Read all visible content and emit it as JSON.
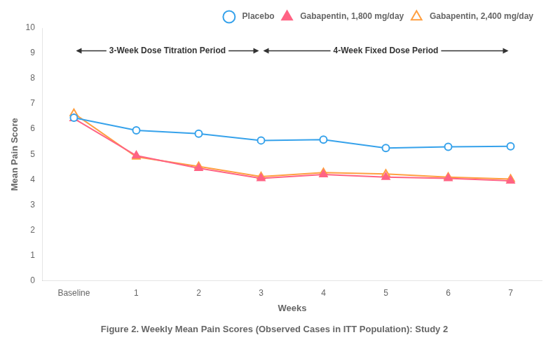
{
  "chart_data": {
    "type": "line",
    "caption": "Figure 2. Weekly Mean Pain Scores (Observed Cases in ITT Population): Study 2",
    "xlabel": "Weeks",
    "ylabel": "Mean Pain Score",
    "categories": [
      "Baseline",
      "1",
      "2",
      "3",
      "4",
      "5",
      "6",
      "7"
    ],
    "series": [
      {
        "name": "  Placebo",
        "marker": "open_circle",
        "values": [
          6.45,
          5.95,
          5.82,
          5.55,
          5.58,
          5.25,
          5.3,
          5.32
        ]
      },
      {
        "name": "  Gabapentin, 1,800 mg/day",
        "marker": "filled_triangle",
        "values": [
          6.42,
          4.95,
          4.45,
          4.05,
          4.2,
          4.1,
          4.05,
          3.95
        ]
      },
      {
        "name": "  Gabapentin, 2,400 mg/day",
        "marker": "open_triangle",
        "values": [
          6.62,
          4.9,
          4.52,
          4.12,
          4.28,
          4.22,
          4.1,
          4.02
        ]
      }
    ],
    "ylim": [
      0,
      10
    ],
    "yticks": [
      0,
      1,
      2,
      3,
      4,
      5,
      6,
      7,
      8,
      9,
      10
    ],
    "grid": false,
    "legend": "upper right",
    "annotations": [
      {
        "text": "3-Week Dose Titration Period",
        "from": "Baseline",
        "to": "3",
        "y": 9.1
      },
      {
        "text": "4-Week Fixed Dose Period",
        "from": "3",
        "to": "7",
        "y": 9.1
      }
    ]
  }
}
